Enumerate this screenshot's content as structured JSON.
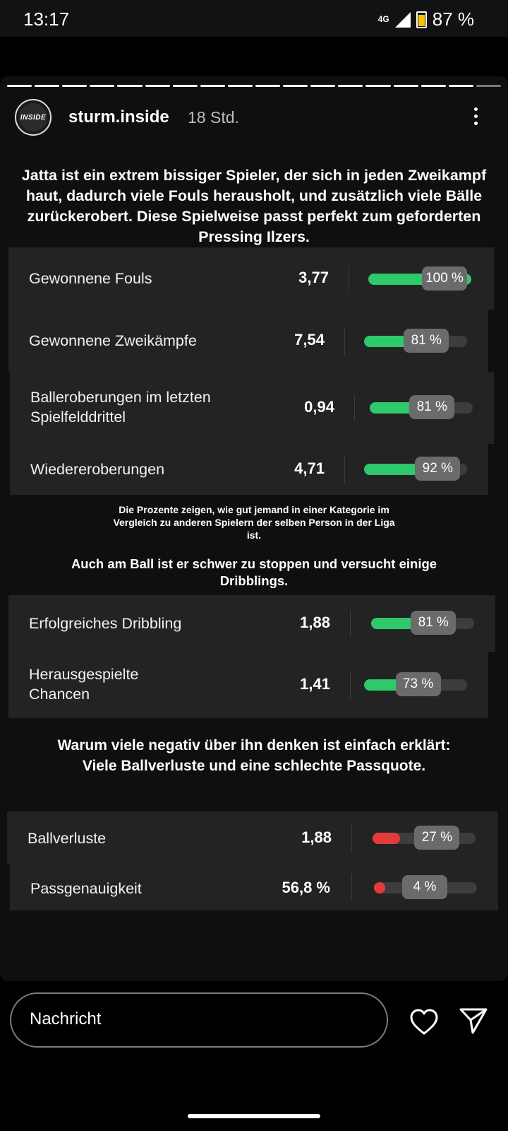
{
  "status_bar": {
    "time": "13:17",
    "network": "4G",
    "battery": "87 %"
  },
  "story": {
    "username": "sturm.inside",
    "time_ago": "18 Std.",
    "avatar_text": "INSIDE",
    "heading1": "Jatta ist ein extrem bissiger Spieler, der sich in jeden Zweikampf haut, dadurch viele Fouls herausholt, und zusätzlich viele Bälle zurückerobert. Diese Spielweise passt perfekt zum geforderten Pressing Ilzers.",
    "stats1": [
      {
        "label": "Gewonnene Fouls",
        "value": "3,77",
        "pct": "100 %",
        "fill": 1.0
      },
      {
        "label": "Gewonnene Zweikämpfe",
        "value": "7,54",
        "pct": "81 %",
        "fill": 0.81
      },
      {
        "label": "Balleroberungen im letzten Spielfelddrittel",
        "value": "0,94",
        "pct": "81 %",
        "fill": 0.81
      },
      {
        "label": "Wiedereroberungen",
        "value": "4,71",
        "pct": "92 %",
        "fill": 0.92
      }
    ],
    "note": "Die Prozente zeigen, wie gut jemand in einer Kategorie im Vergleich zu anderen Spielern der selben Person in der Liga ist.",
    "heading2": "Auch am Ball ist er schwer zu stoppen und versucht einige Dribblings.",
    "stats2": [
      {
        "label": "Erfolgreiches Dribbling",
        "value": "1,88",
        "pct": "81 %",
        "fill": 0.81
      },
      {
        "label": "Herausgespielte Chancen",
        "value": "1,41",
        "pct": "73 %",
        "fill": 0.73
      }
    ],
    "heading3": "Warum viele negativ über ihn denken ist einfach erklärt: Viele Ballverluste und eine schlechte Passquote.",
    "stats3": [
      {
        "label": "Ballverluste",
        "value": "1,88",
        "pct": "27 %",
        "fill": 0.27
      },
      {
        "label": "Passgenauigkeit",
        "value": "56,8 %",
        "pct": "4 %",
        "fill": 0.04
      }
    ]
  },
  "bottom": {
    "message_placeholder": "Nachricht"
  },
  "icons": {
    "like": "heart-icon",
    "send": "send-icon",
    "more": "more-vert-icon"
  },
  "colors": {
    "positive": "#2ec96a",
    "negative": "#e23b3b"
  }
}
